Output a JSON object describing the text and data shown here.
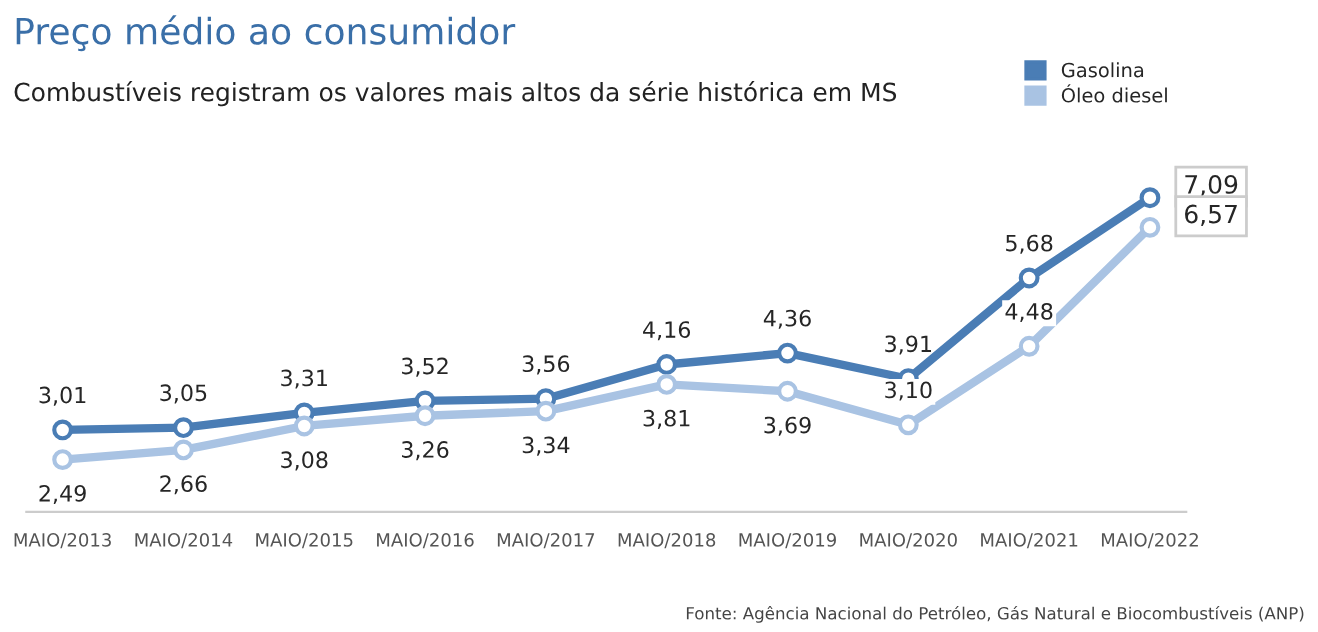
{
  "chart_data": {
    "type": "line",
    "title": "Preço médio ao consumidor",
    "subtitle": "Combustíveis registram os valores mais altos da série histórica em MS",
    "categories": [
      "MAIO/2013",
      "MAIO/2014",
      "MAIO/2015",
      "MAIO/2016",
      "MAIO/2017",
      "MAIO/2018",
      "MAIO/2019",
      "MAIO/2020",
      "MAIO/2021",
      "MAIO/2022"
    ],
    "series": [
      {
        "name": "Gasolina",
        "color": "#4a7db5",
        "values": [
          3.01,
          3.05,
          3.31,
          3.52,
          3.56,
          4.16,
          4.36,
          3.91,
          5.68,
          7.09
        ],
        "value_labels": [
          "3,01",
          "3,05",
          "3,31",
          "3,52",
          "3,56",
          "4,16",
          "4,36",
          "3,91",
          "5,68",
          "7,09"
        ]
      },
      {
        "name": "Óleo diesel",
        "color": "#a9c3e3",
        "values": [
          2.49,
          2.66,
          3.08,
          3.26,
          3.34,
          3.81,
          3.69,
          3.1,
          4.48,
          6.57
        ],
        "value_labels": [
          "2,49",
          "2,66",
          "3,08",
          "3,26",
          "3,34",
          "3,81",
          "3,69",
          "3,10",
          "4,48",
          "6,57"
        ]
      }
    ],
    "legend": "top right",
    "marker": "circle",
    "annotations": [
      "Fonte: Agência Nacional do Petróleo, Gás Natural e Biocombustíveis (ANP)"
    ]
  }
}
